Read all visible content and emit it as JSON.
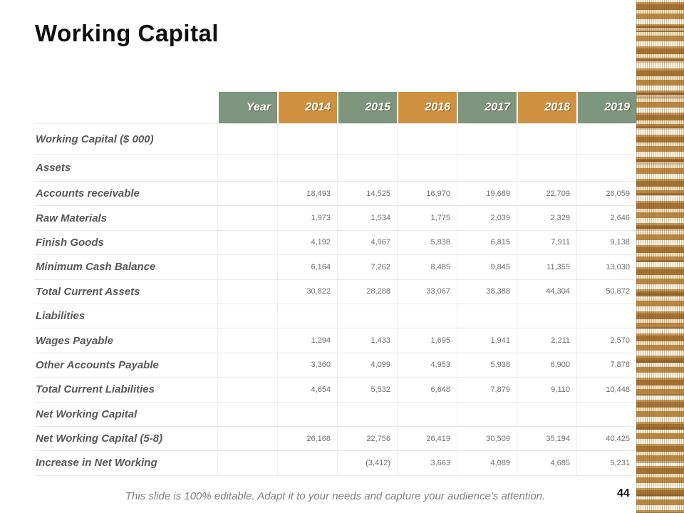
{
  "slide": {
    "title": "Working Capital",
    "footer": "This slide is 100% editable. Adapt it to your needs and capture your audience's attention.",
    "page_number": "44"
  },
  "colors": {
    "header_green": "#7e957e",
    "header_orange": "#cf9040",
    "label_text": "#595959",
    "value_text": "#6e6e6e",
    "coin_gold": "#bf8c45"
  },
  "table": {
    "header": [
      {
        "label": "Year",
        "color": "green"
      },
      {
        "label": "2014",
        "color": "orange"
      },
      {
        "label": "2015",
        "color": "green"
      },
      {
        "label": "2016",
        "color": "orange"
      },
      {
        "label": "2017",
        "color": "green"
      },
      {
        "label": "2018",
        "color": "orange"
      },
      {
        "label": "2019",
        "color": "green"
      }
    ],
    "rows": [
      {
        "label": "Working Capital ($ 000)",
        "values": [
          "",
          "",
          "",
          "",
          "",
          ""
        ]
      },
      {
        "label": "Assets",
        "values": [
          "",
          "",
          "",
          "",
          "",
          ""
        ]
      },
      {
        "label": "Accounts receivable",
        "values": [
          "18,493",
          "14,525",
          "16,970",
          "19,689",
          "22,709",
          "26,059"
        ]
      },
      {
        "label": "Raw Materials",
        "values": [
          "1,973",
          "1,534",
          "1,775",
          "2,039",
          "2,329",
          "2,646"
        ]
      },
      {
        "label": "Finish Goods",
        "values": [
          "4,192",
          "4,967",
          "5,838",
          "6,815",
          "7,911",
          "9,138"
        ]
      },
      {
        "label": "Minimum Cash Balance",
        "values": [
          "6,164",
          "7,262",
          "8,485",
          "9,845",
          "11,355",
          "13,030"
        ]
      },
      {
        "label": "Total Current Assets",
        "values": [
          "30,822",
          "28,288",
          "33,067",
          "38,388",
          "44,304",
          "50,872"
        ]
      },
      {
        "label": "Liabilities",
        "values": [
          "",
          "",
          "",
          "",
          "",
          ""
        ]
      },
      {
        "label": "Wages Payable",
        "values": [
          "1,294",
          "1,433",
          "1,695",
          "1,941",
          "2,211",
          "2,570"
        ]
      },
      {
        "label": "Other Accounts Payable",
        "values": [
          "3,360",
          "4,099",
          "4,953",
          "5,938",
          "6,900",
          "7,878"
        ]
      },
      {
        "label": "Total Current Liabilities",
        "values": [
          "4,654",
          "5,532",
          "6,648",
          "7,879",
          "9,110",
          "10,448"
        ]
      },
      {
        "label": "Net Working Capital",
        "values": [
          "",
          "",
          "",
          "",
          "",
          ""
        ]
      },
      {
        "label": "Net Working Capital (5-8)",
        "values": [
          "26,168",
          "22,756",
          "26,419",
          "30,509",
          "35,194",
          "40,425"
        ]
      },
      {
        "label": "Increase in Net Working",
        "values": [
          "",
          "(3,412)",
          "3,663",
          "4,089",
          "4,685",
          "5,231"
        ]
      }
    ]
  }
}
